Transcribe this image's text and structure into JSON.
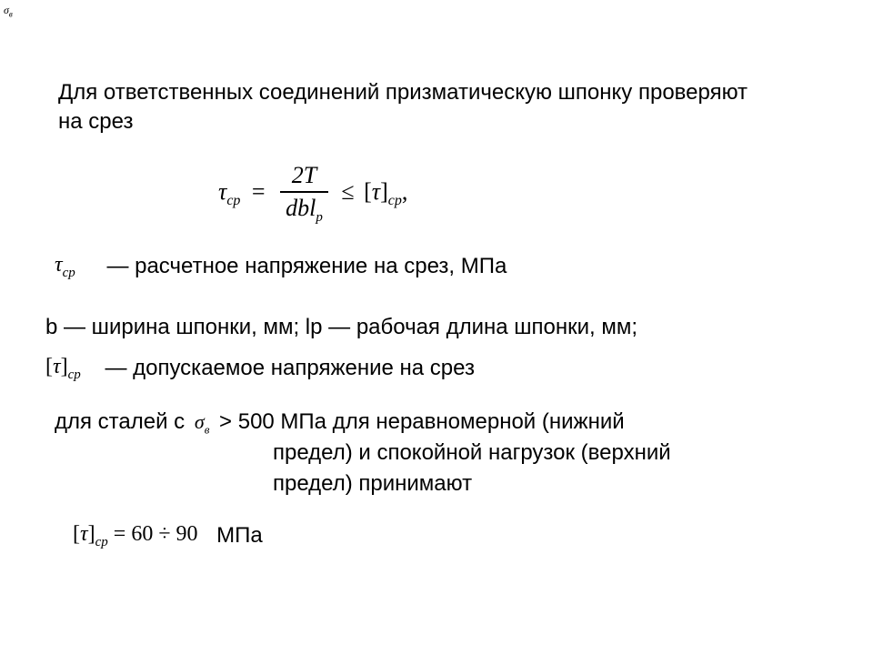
{
  "corner_symbol_base": "σ",
  "corner_symbol_sub": "в",
  "intro": "Для ответственных соединений призматическую шпонку проверяют на срез",
  "formula": {
    "lhs_base": "τ",
    "lhs_sub": "ср",
    "eq": "=",
    "num": "2T",
    "den_left": "dbl",
    "den_sub": "p",
    "le": "≤",
    "rhs_open": "[",
    "rhs_base": "τ",
    "rhs_close": "]",
    "rhs_sub": "ср",
    "tail": ","
  },
  "tau_line": {
    "sym_base": "τ",
    "sym_sub": "ср",
    "text": "— расчетное напряжение на срез, МПа"
  },
  "b_line": "b — ширина шпонки, мм; lp — рабочая длина шпонки, мм;",
  "allow_line": {
    "open": "[",
    "base": "τ",
    "close": "]",
    "sub": "ср",
    "text": "— допускаемое напряжение на срез"
  },
  "steel_line1_pre": "для сталей с ",
  "sigma_base": "σ",
  "sigma_sub": "в",
  "steel_line1_post": " > 500 МПа для неравномерной (нижний",
  "steel_line2": "предел) и спокойной нагрузок (верхний",
  "steel_line3": "предел) принимают",
  "range": {
    "open": "[",
    "base": "τ",
    "close": "]",
    "sub": "ср",
    "eq": "=",
    "val": "60 ÷ 90",
    "unit": "МПа"
  }
}
